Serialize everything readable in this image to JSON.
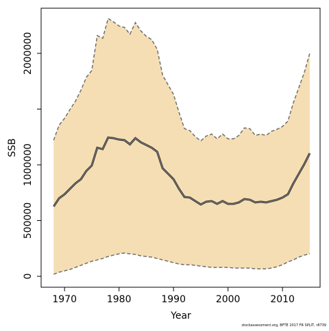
{
  "chart_data": {
    "type": "line",
    "xlabel": "Year",
    "ylabel": "SSB",
    "footnote": "stockassessment.org, BFTE 2017 FR SPLIT, r8739",
    "x": [
      1968,
      1969,
      1970,
      1971,
      1972,
      1973,
      1974,
      1975,
      1976,
      1977,
      1978,
      1979,
      1980,
      1981,
      1982,
      1983,
      1984,
      1985,
      1986,
      1987,
      1988,
      1989,
      1990,
      1991,
      1992,
      1993,
      1994,
      1995,
      1996,
      1997,
      1998,
      1999,
      2000,
      2001,
      2002,
      2003,
      2004,
      2005,
      2006,
      2007,
      2008,
      2009,
      2010,
      2011,
      2012,
      2013,
      2014,
      2015
    ],
    "values": [
      626000,
      700000,
      736000,
      785000,
      834000,
      871000,
      945000,
      994000,
      1153000,
      1141000,
      1245000,
      1239000,
      1227000,
      1221000,
      1184000,
      1239000,
      1202000,
      1178000,
      1153000,
      1117000,
      969000,
      920000,
      871000,
      785000,
      712000,
      706000,
      675000,
      644000,
      669000,
      675000,
      650000,
      675000,
      650000,
      650000,
      663000,
      693000,
      687000,
      663000,
      669000,
      663000,
      675000,
      687000,
      706000,
      736000,
      834000,
      920000,
      1006000,
      1104000
    ],
    "upper": [
      1221000,
      1356000,
      1417000,
      1497000,
      1571000,
      1669000,
      1785000,
      1847000,
      2160000,
      2135000,
      2313000,
      2282000,
      2245000,
      2233000,
      2172000,
      2276000,
      2202000,
      2153000,
      2123000,
      2037000,
      1804000,
      1718000,
      1632000,
      1472000,
      1325000,
      1307000,
      1252000,
      1215000,
      1258000,
      1276000,
      1233000,
      1276000,
      1233000,
      1233000,
      1264000,
      1331000,
      1325000,
      1264000,
      1276000,
      1264000,
      1301000,
      1319000,
      1344000,
      1393000,
      1558000,
      1693000,
      1828000,
      2000000
    ],
    "lower": [
      18000,
      37000,
      49000,
      61000,
      80000,
      98000,
      117000,
      135000,
      147000,
      160000,
      178000,
      190000,
      202000,
      209000,
      202000,
      196000,
      184000,
      178000,
      172000,
      160000,
      147000,
      135000,
      123000,
      110000,
      104000,
      104000,
      98000,
      92000,
      86000,
      80000,
      80000,
      80000,
      80000,
      74000,
      74000,
      74000,
      74000,
      67000,
      67000,
      67000,
      74000,
      86000,
      104000,
      129000,
      147000,
      172000,
      190000,
      202000
    ],
    "color": "#333333",
    "band_color": "#f5deb3",
    "band_edge_color": "#6e6e6e",
    "xlim": [
      1965.7,
      2016.9
    ],
    "ylim": [
      -98000,
      2405000
    ],
    "xticks": [
      1970,
      1980,
      1990,
      2000,
      2010
    ],
    "yticks": [
      0,
      500000,
      1000000,
      {
        "value": 1500000,
        "label": null
      },
      2000000
    ]
  }
}
